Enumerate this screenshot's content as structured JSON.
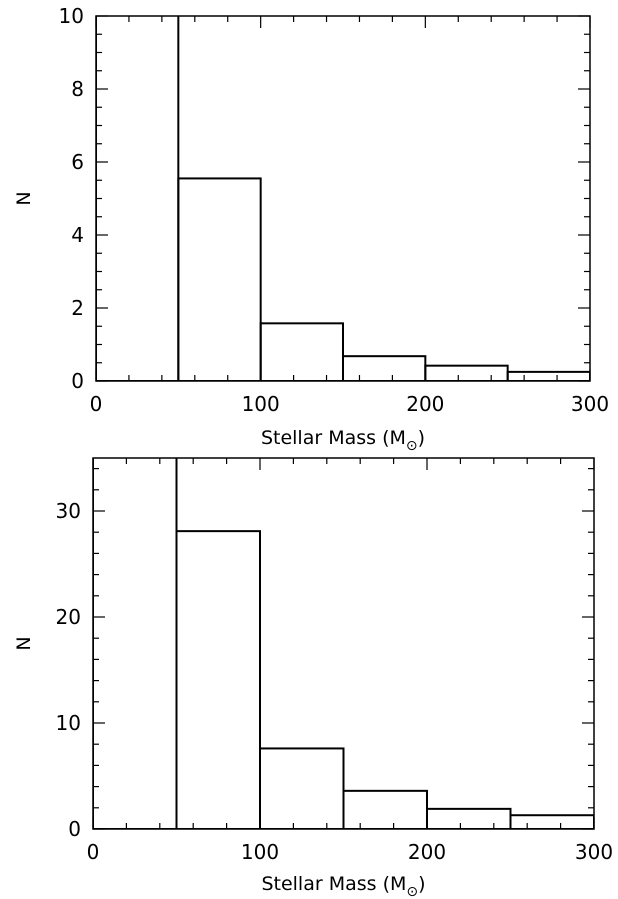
{
  "chart_data": [
    {
      "type": "bar",
      "histogram": true,
      "bins": [
        [
          0,
          50
        ],
        [
          50,
          100
        ],
        [
          100,
          150
        ],
        [
          150,
          200
        ],
        [
          200,
          250
        ],
        [
          250,
          300
        ]
      ],
      "values": [
        10.5,
        5.55,
        1.58,
        0.68,
        0.42,
        0.25
      ],
      "xlabel": "Stellar Mass (M",
      "xlabel_sub": "⊙",
      "xlabel_close": ")",
      "ylabel": "N",
      "xlim": [
        0,
        300
      ],
      "ylim": [
        0,
        10
      ],
      "xticks": [
        0,
        100,
        200,
        300
      ],
      "xticks_labels": [
        "0",
        "100",
        "200",
        "300"
      ],
      "x_minor_step": 20,
      "yticks": [
        0,
        2,
        4,
        6,
        8,
        10
      ],
      "yticks_labels": [
        "0",
        "2",
        "4",
        "6",
        "8",
        "10"
      ],
      "y_minor_step": 0.5,
      "grid": false
    },
    {
      "type": "bar",
      "histogram": true,
      "bins": [
        [
          0,
          50
        ],
        [
          50,
          100
        ],
        [
          100,
          150
        ],
        [
          150,
          200
        ],
        [
          200,
          250
        ],
        [
          250,
          300
        ]
      ],
      "values": [
        40,
        28.1,
        7.6,
        3.6,
        1.9,
        1.3
      ],
      "xlabel": "Stellar Mass (M",
      "xlabel_sub": "⊙",
      "xlabel_close": ")",
      "ylabel": "N",
      "xlim": [
        0,
        300
      ],
      "ylim": [
        0,
        35
      ],
      "xticks": [
        0,
        100,
        200,
        300
      ],
      "xticks_labels": [
        "0",
        "100",
        "200",
        "300"
      ],
      "x_minor_step": 20,
      "yticks": [
        0,
        10,
        20,
        30
      ],
      "yticks_labels": [
        "0",
        "10",
        "20",
        "30"
      ],
      "y_minor_step": 2,
      "grid": false
    }
  ],
  "colors": {
    "axis": "#000000",
    "bars": "#000000",
    "background": "#ffffff"
  }
}
